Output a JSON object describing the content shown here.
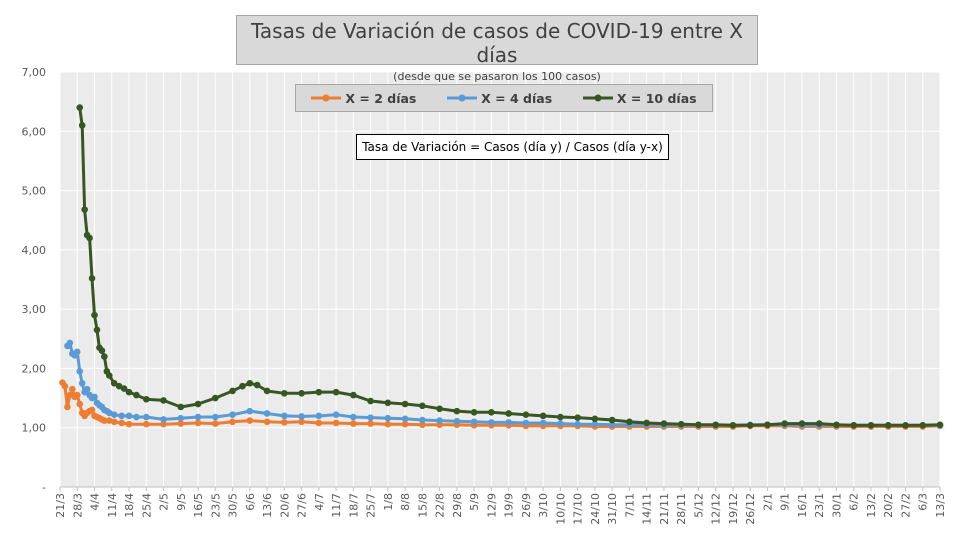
{
  "chart_data": {
    "type": "line",
    "title": "Tasas de Variación de casos de COVID-19 entre X días",
    "subtitle": "(desde que se pasaron los 100 casos)",
    "annotation": "Tasa de Variación = Casos (día y) / Casos (día y-x)",
    "ylim": [
      0,
      7
    ],
    "y_ticks": [
      "-",
      "1,00",
      "2,00",
      "3,00",
      "4,00",
      "5,00",
      "6,00",
      "7,00"
    ],
    "x_tick_labels": [
      "21/3",
      "28/3",
      "4/4",
      "11/4",
      "18/4",
      "25/4",
      "2/5",
      "9/5",
      "16/5",
      "23/5",
      "30/5",
      "6/6",
      "13/6",
      "20/6",
      "27/6",
      "4/7",
      "11/7",
      "18/7",
      "25/7",
      "1/8",
      "8/8",
      "15/8",
      "22/8",
      "29/8",
      "5/9",
      "12/9",
      "19/9",
      "26/9",
      "3/10",
      "10/10",
      "17/10",
      "24/10",
      "31/10",
      "7/11",
      "14/11",
      "21/11",
      "28/11",
      "5/12",
      "12/12",
      "19/12",
      "26/12",
      "2/1",
      "9/1",
      "16/1",
      "23/1",
      "30/1",
      "6/2",
      "13/2",
      "20/2",
      "27/2",
      "6/3",
      "13/3"
    ],
    "x_day_range": [
      0,
      357
    ],
    "grid": true,
    "legend_position": "top",
    "series": [
      {
        "name": "X = 2 días",
        "color": "#ed7d31",
        "x": [
          1,
          2,
          3,
          4,
          5,
          6,
          7,
          8,
          9,
          10,
          11,
          12,
          13,
          14,
          15,
          16,
          17,
          18,
          20,
          22,
          25,
          28,
          35,
          42,
          49,
          56,
          63,
          70,
          77,
          84,
          91,
          98,
          105,
          112,
          119,
          126,
          133,
          140,
          147,
          154,
          161,
          168,
          175,
          182,
          189,
          196,
          203,
          210,
          217,
          224,
          231,
          238,
          245,
          252,
          259,
          266,
          273,
          280,
          287,
          294,
          301,
          308,
          315,
          322,
          329,
          336,
          343,
          350,
          357
        ],
        "values": [
          1.76,
          1.7,
          1.35,
          1.55,
          1.65,
          1.52,
          1.55,
          1.4,
          1.25,
          1.2,
          1.25,
          1.28,
          1.3,
          1.2,
          1.18,
          1.16,
          1.14,
          1.12,
          1.12,
          1.1,
          1.08,
          1.06,
          1.06,
          1.06,
          1.07,
          1.08,
          1.07,
          1.1,
          1.12,
          1.1,
          1.09,
          1.1,
          1.08,
          1.08,
          1.07,
          1.07,
          1.06,
          1.06,
          1.05,
          1.05,
          1.05,
          1.04,
          1.04,
          1.04,
          1.03,
          1.03,
          1.03,
          1.03,
          1.02,
          1.02,
          1.02,
          1.02,
          1.02,
          1.02,
          1.02,
          1.02,
          1.02,
          1.03,
          1.03,
          1.03,
          1.02,
          1.02,
          1.02,
          1.02,
          1.02,
          1.02,
          1.02,
          1.02,
          1.03
        ]
      },
      {
        "name": "X = 4 días",
        "color": "#5b9bd5",
        "x": [
          3,
          4,
          5,
          6,
          7,
          8,
          9,
          10,
          11,
          12,
          13,
          14,
          15,
          16,
          17,
          18,
          19,
          20,
          22,
          25,
          28,
          31,
          35,
          42,
          49,
          56,
          63,
          70,
          77,
          84,
          91,
          98,
          105,
          112,
          119,
          126,
          133,
          140,
          147,
          154,
          161,
          168,
          175,
          182,
          189,
          196,
          203,
          210,
          217,
          224,
          231,
          238,
          245,
          252,
          259,
          266,
          273,
          280,
          287,
          294,
          301,
          308,
          315,
          322,
          329,
          336,
          343,
          350,
          357
        ],
        "values": [
          2.38,
          2.43,
          2.25,
          2.22,
          2.28,
          1.95,
          1.75,
          1.6,
          1.65,
          1.55,
          1.5,
          1.52,
          1.42,
          1.38,
          1.35,
          1.3,
          1.28,
          1.25,
          1.22,
          1.2,
          1.2,
          1.18,
          1.18,
          1.14,
          1.16,
          1.18,
          1.18,
          1.22,
          1.28,
          1.24,
          1.2,
          1.19,
          1.2,
          1.22,
          1.18,
          1.17,
          1.16,
          1.15,
          1.13,
          1.12,
          1.11,
          1.1,
          1.09,
          1.09,
          1.08,
          1.08,
          1.07,
          1.06,
          1.06,
          1.05,
          1.05,
          1.05,
          1.04,
          1.04,
          1.04,
          1.04,
          1.04,
          1.05,
          1.05,
          1.05,
          1.04,
          1.04,
          1.04,
          1.04,
          1.04,
          1.04,
          1.04,
          1.04,
          1.04
        ]
      },
      {
        "name": "X = 10 días",
        "color": "#375623",
        "x": [
          8,
          9,
          10,
          11,
          12,
          13,
          14,
          15,
          16,
          17,
          18,
          19,
          20,
          22,
          24,
          26,
          28,
          31,
          35,
          42,
          49,
          56,
          63,
          70,
          74,
          77,
          80,
          84,
          91,
          98,
          105,
          112,
          119,
          126,
          133,
          140,
          147,
          154,
          161,
          168,
          175,
          182,
          189,
          196,
          203,
          210,
          217,
          224,
          231,
          238,
          245,
          252,
          259,
          266,
          273,
          280,
          287,
          294,
          301,
          308,
          315,
          322,
          329,
          336,
          343,
          350,
          357
        ],
        "values": [
          6.4,
          6.1,
          4.68,
          4.25,
          4.2,
          3.52,
          2.9,
          2.65,
          2.35,
          2.3,
          2.2,
          1.95,
          1.88,
          1.75,
          1.7,
          1.66,
          1.6,
          1.55,
          1.48,
          1.46,
          1.35,
          1.4,
          1.5,
          1.62,
          1.7,
          1.75,
          1.72,
          1.62,
          1.58,
          1.58,
          1.6,
          1.6,
          1.55,
          1.45,
          1.42,
          1.4,
          1.37,
          1.32,
          1.28,
          1.26,
          1.26,
          1.24,
          1.22,
          1.2,
          1.18,
          1.17,
          1.15,
          1.13,
          1.1,
          1.08,
          1.07,
          1.06,
          1.05,
          1.05,
          1.04,
          1.04,
          1.05,
          1.07,
          1.07,
          1.07,
          1.05,
          1.04,
          1.04,
          1.04,
          1.04,
          1.04,
          1.05
        ]
      }
    ]
  }
}
